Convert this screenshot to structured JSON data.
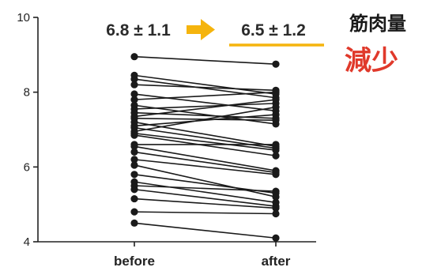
{
  "chart_data": {
    "type": "line",
    "categories": [
      "before",
      "after"
    ],
    "ylim": [
      4,
      10
    ],
    "yticks": [
      4,
      6,
      8,
      10
    ],
    "grid": false,
    "series": [
      {
        "values": [
          8.95,
          8.75
        ]
      },
      {
        "values": [
          8.45,
          7.95
        ]
      },
      {
        "values": [
          8.35,
          7.85
        ]
      },
      {
        "values": [
          8.2,
          8.05
        ]
      },
      {
        "values": [
          7.95,
          7.5
        ]
      },
      {
        "values": [
          7.8,
          8.0
        ]
      },
      {
        "values": [
          7.65,
          7.15
        ]
      },
      {
        "values": [
          7.55,
          7.7
        ]
      },
      {
        "values": [
          7.45,
          7.3
        ]
      },
      {
        "values": [
          7.35,
          7.8
        ]
      },
      {
        "values": [
          7.3,
          7.25
        ]
      },
      {
        "values": [
          7.2,
          6.55
        ]
      },
      {
        "values": [
          7.1,
          7.4
        ]
      },
      {
        "values": [
          7.05,
          6.5
        ]
      },
      {
        "values": [
          6.95,
          7.6
        ]
      },
      {
        "values": [
          6.9,
          6.45
        ]
      },
      {
        "values": [
          6.85,
          6.3
        ]
      },
      {
        "values": [
          6.6,
          6.6
        ]
      },
      {
        "values": [
          6.55,
          5.9
        ]
      },
      {
        "values": [
          6.4,
          5.85
        ]
      },
      {
        "values": [
          6.2,
          5.8
        ]
      },
      {
        "values": [
          6.05,
          5.2
        ]
      },
      {
        "values": [
          5.8,
          5.3
        ]
      },
      {
        "values": [
          5.6,
          5.05
        ]
      },
      {
        "values": [
          5.5,
          5.35
        ]
      },
      {
        "values": [
          5.4,
          4.95
        ]
      },
      {
        "values": [
          5.15,
          4.9
        ]
      },
      {
        "values": [
          4.8,
          4.75
        ]
      },
      {
        "values": [
          4.5,
          4.1
        ]
      }
    ],
    "colors": {
      "line": "#1a1a1a",
      "point": "#1a1a1a",
      "axis": "#222222"
    }
  },
  "annotations": {
    "before_stat": "6.8 ± 1.1",
    "after_stat": "6.5 ± 1.2",
    "arrow_color": "#f5b40d",
    "underline_color": "#f5b40d",
    "note_line1": "筋肉量",
    "note_line2": "減少",
    "note_line2_color": "#e0392b"
  }
}
